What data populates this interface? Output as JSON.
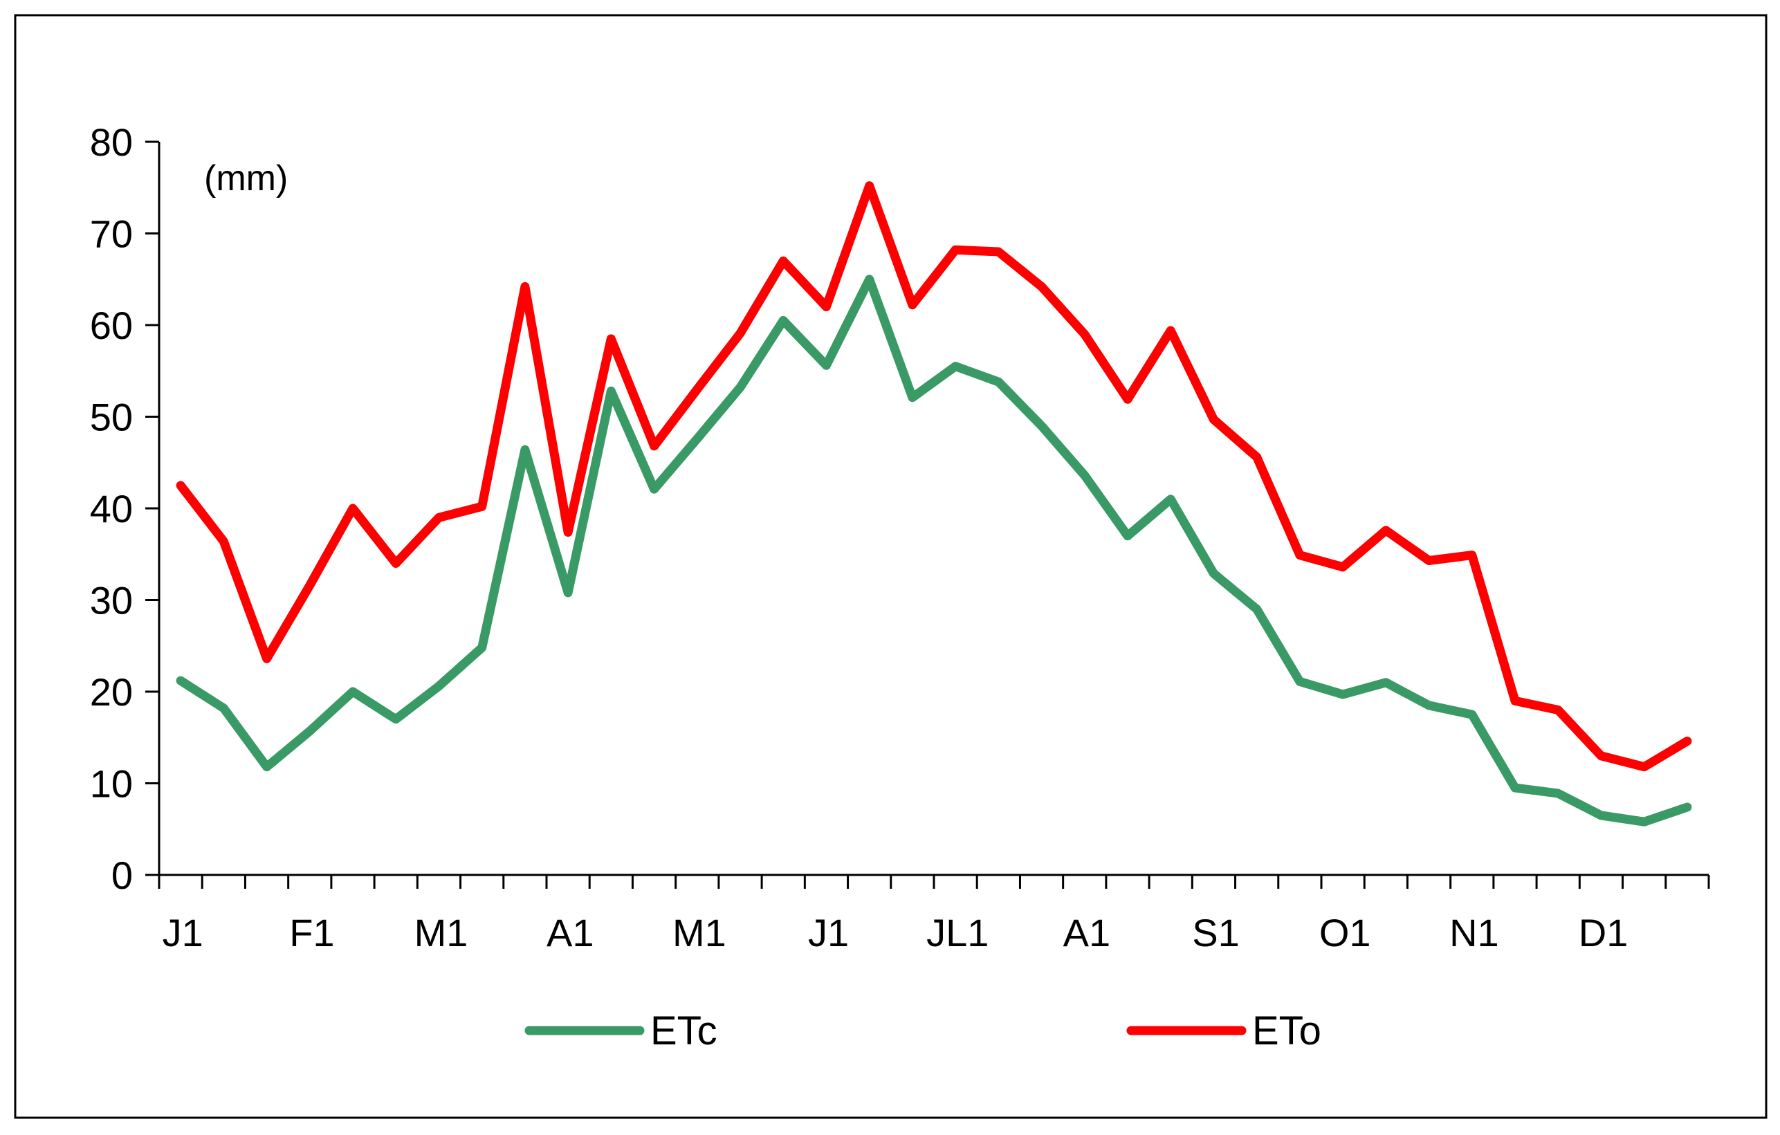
{
  "chart_data": {
    "type": "line",
    "title": "",
    "unit_label": "(mm)",
    "xlabel": "",
    "ylabel": "",
    "ylim": [
      0,
      80
    ],
    "yticks": [
      0,
      10,
      20,
      30,
      40,
      50,
      60,
      70,
      80
    ],
    "x_tick_labels": [
      "J1",
      "F1",
      "M1",
      "A1",
      "M1",
      "J1",
      "JL1",
      "A1",
      "S1",
      "O1",
      "N1",
      "D1"
    ],
    "x_points": 36,
    "grid": false,
    "legend_position": "bottom",
    "series": [
      {
        "name": "ETc",
        "color": "#3a9a66",
        "values": [
          21.2,
          18.2,
          11.8,
          15.7,
          20.0,
          17.0,
          20.6,
          24.8,
          46.4,
          30.8,
          52.8,
          42.1,
          47.6,
          53.2,
          60.5,
          55.6,
          65.0,
          52.1,
          55.5,
          53.8,
          49.0,
          43.6,
          37.0,
          41.0,
          32.9,
          29.0,
          21.1,
          19.7,
          21.0,
          18.5,
          17.5,
          9.5,
          8.9,
          6.5,
          5.8,
          7.4
        ]
      },
      {
        "name": "ETo",
        "color": "#ff0000",
        "values": [
          42.5,
          36.4,
          23.6,
          31.6,
          40.0,
          34.0,
          39.0,
          40.2,
          64.2,
          37.4,
          58.5,
          46.8,
          53.0,
          59.1,
          67.0,
          62.0,
          75.2,
          62.2,
          68.2,
          68.0,
          64.2,
          59.0,
          51.9,
          59.4,
          49.7,
          45.6,
          34.9,
          33.6,
          37.6,
          34.3,
          34.9,
          19.0,
          18.0,
          13.0,
          11.8,
          14.6
        ]
      }
    ]
  }
}
